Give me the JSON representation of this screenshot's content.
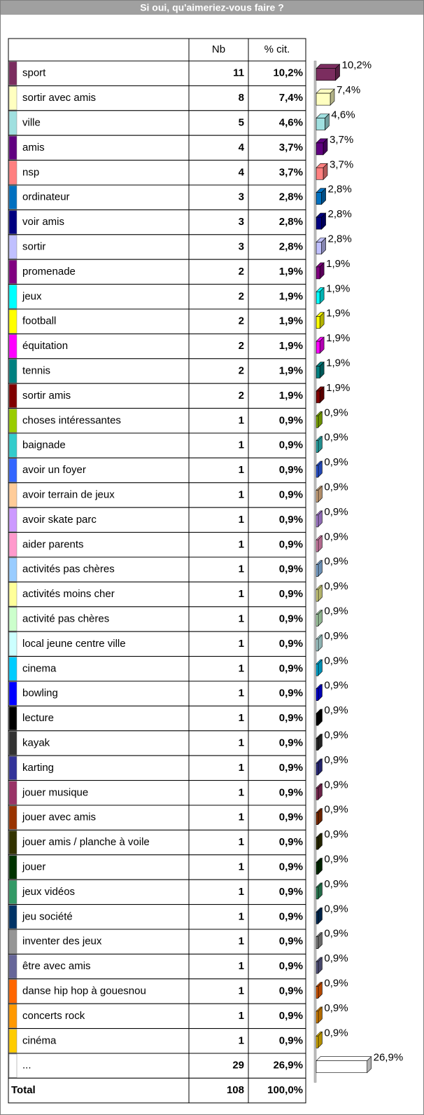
{
  "chart_data": {
    "type": "bar",
    "title": "Si oui, qu'aimeriez-vous faire ?",
    "columns": [
      "Nb",
      "% cit."
    ],
    "categories": [
      "sport",
      "sortir avec amis",
      "ville",
      "amis",
      "nsp",
      "ordinateur",
      "voir amis",
      "sortir",
      "promenade",
      "jeux",
      "football",
      "équitation",
      "tennis",
      "sortir amis",
      "choses intéressantes",
      "baignade",
      "avoir un foyer",
      "avoir terrain de jeux",
      "avoir skate parc",
      "aider parents",
      "activités pas chères",
      "activités moins cher",
      "activité pas chères",
      "local jeune centre ville",
      "cinema",
      "bowling",
      "lecture",
      "kayak",
      "karting",
      "jouer musique",
      "jouer avec amis",
      "jouer amis / planche à voile",
      "jouer",
      "jeux vidéos",
      "jeu société",
      "inventer des jeux",
      "être avec amis",
      "danse hip hop à gouesnou",
      "concerts rock",
      "cinéma",
      "..."
    ],
    "counts": [
      11,
      8,
      5,
      4,
      4,
      3,
      3,
      3,
      2,
      2,
      2,
      2,
      2,
      2,
      1,
      1,
      1,
      1,
      1,
      1,
      1,
      1,
      1,
      1,
      1,
      1,
      1,
      1,
      1,
      1,
      1,
      1,
      1,
      1,
      1,
      1,
      1,
      1,
      1,
      1,
      29
    ],
    "values": [
      10.2,
      7.4,
      4.6,
      3.7,
      3.7,
      2.8,
      2.8,
      2.8,
      1.9,
      1.9,
      1.9,
      1.9,
      1.9,
      1.9,
      0.9,
      0.9,
      0.9,
      0.9,
      0.9,
      0.9,
      0.9,
      0.9,
      0.9,
      0.9,
      0.9,
      0.9,
      0.9,
      0.9,
      0.9,
      0.9,
      0.9,
      0.9,
      0.9,
      0.9,
      0.9,
      0.9,
      0.9,
      0.9,
      0.9,
      0.9,
      26.9
    ],
    "value_labels": [
      "10,2%",
      "7,4%",
      "4,6%",
      "3,7%",
      "3,7%",
      "2,8%",
      "2,8%",
      "2,8%",
      "1,9%",
      "1,9%",
      "1,9%",
      "1,9%",
      "1,9%",
      "1,9%",
      "0,9%",
      "0,9%",
      "0,9%",
      "0,9%",
      "0,9%",
      "0,9%",
      "0,9%",
      "0,9%",
      "0,9%",
      "0,9%",
      "0,9%",
      "0,9%",
      "0,9%",
      "0,9%",
      "0,9%",
      "0,9%",
      "0,9%",
      "0,9%",
      "0,9%",
      "0,9%",
      "0,9%",
      "0,9%",
      "0,9%",
      "0,9%",
      "0,9%",
      "0,9%",
      "26,9%"
    ],
    "colors": [
      "#7b2d5f",
      "#ffffc0",
      "#a0e0e0",
      "#600080",
      "#ff8080",
      "#0070c0",
      "#000080",
      "#c0c0ff",
      "#800080",
      "#00ffff",
      "#ffff00",
      "#ff00ff",
      "#008080",
      "#800000",
      "#99cc00",
      "#33cccc",
      "#3366ff",
      "#ffcc99",
      "#cc99ff",
      "#ff99cc",
      "#99ccff",
      "#ffff99",
      "#ccffcc",
      "#ccffff",
      "#00ccff",
      "#0000ff",
      "#000000",
      "#333333",
      "#333399",
      "#993366",
      "#993300",
      "#333300",
      "#003300",
      "#339966",
      "#003366",
      "#969696",
      "#666699",
      "#ff6600",
      "#ff9900",
      "#ffcc00",
      "#ffffff"
    ],
    "total": {
      "label": "Total",
      "count": 108,
      "value": 100,
      "value_label": "100,0%"
    }
  }
}
